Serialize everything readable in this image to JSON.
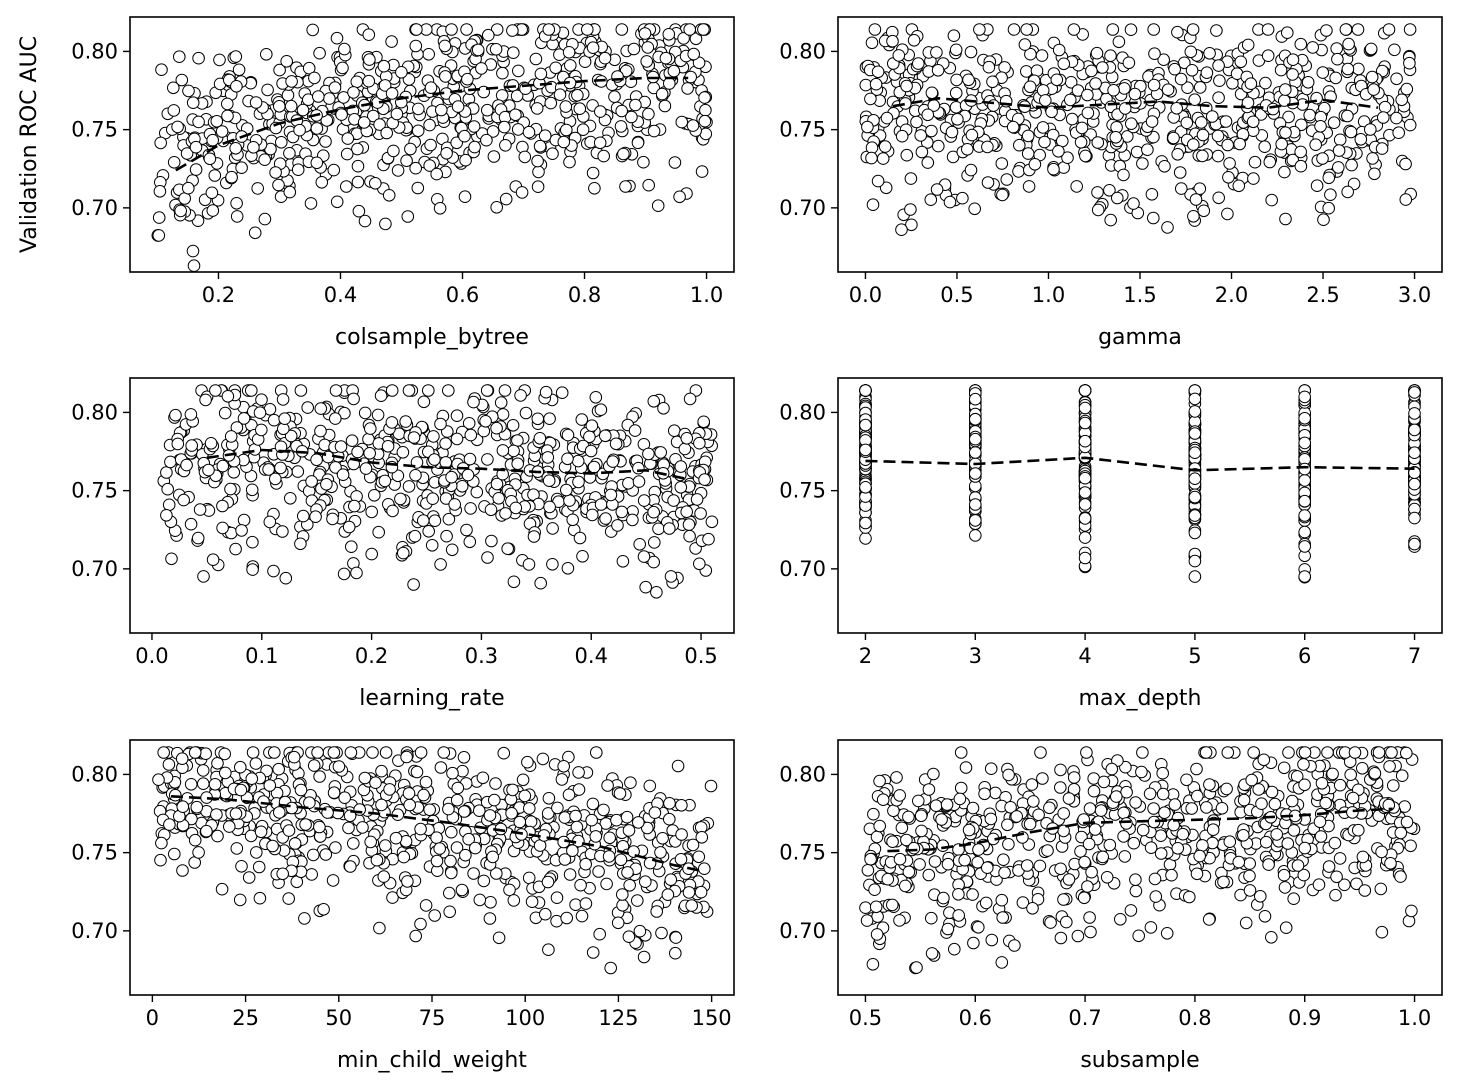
{
  "chart_data": [
    {
      "type": "scatter",
      "xlabel": "colsample_bytree",
      "ylabel": "Validation ROC AUC",
      "xlim": [
        0.055,
        1.045
      ],
      "ylim": [
        0.659,
        0.822
      ],
      "xticks": [
        0.2,
        0.4,
        0.6,
        0.8,
        1.0
      ],
      "xtick_labels": [
        "0.2",
        "0.4",
        "0.6",
        "0.8",
        "1.0"
      ],
      "yticks": [
        0.7,
        0.75,
        0.8
      ],
      "ytick_labels": [
        "0.70",
        "0.75",
        "0.80"
      ],
      "trend": {
        "x": [
          0.13,
          0.2,
          0.3,
          0.4,
          0.5,
          0.6,
          0.7,
          0.8,
          0.9,
          0.97
        ],
        "y": [
          0.724,
          0.74,
          0.754,
          0.763,
          0.77,
          0.775,
          0.778,
          0.781,
          0.783,
          0.783
        ]
      },
      "samples": {
        "x_range": [
          0.1,
          1.0
        ],
        "x_type": "uniform",
        "shape": "saturating",
        "spread": 0.045,
        "y_max": 0.814,
        "n": 700,
        "seed": 11
      }
    },
    {
      "type": "scatter",
      "xlabel": "gamma",
      "ylabel": "",
      "xlim": [
        -0.15,
        3.15
      ],
      "ylim": [
        0.659,
        0.822
      ],
      "xticks": [
        0.0,
        0.5,
        1.0,
        1.5,
        2.0,
        2.5,
        3.0
      ],
      "xtick_labels": [
        "0.0",
        "0.5",
        "1.0",
        "1.5",
        "2.0",
        "2.5",
        "3.0"
      ],
      "yticks": [
        0.7,
        0.75,
        0.8
      ],
      "ytick_labels": [
        "0.70",
        "0.75",
        "0.80"
      ],
      "trend": {
        "x": [
          0.15,
          0.4,
          0.7,
          1.0,
          1.3,
          1.6,
          1.9,
          2.2,
          2.5,
          2.8
        ],
        "y": [
          0.765,
          0.77,
          0.767,
          0.764,
          0.766,
          0.768,
          0.765,
          0.764,
          0.769,
          0.764
        ]
      },
      "samples": {
        "x_range": [
          0.0,
          2.98
        ],
        "x_type": "uniform",
        "shape": "flat",
        "spread": 0.045,
        "y_max": 0.814,
        "n": 700,
        "seed": 23
      }
    },
    {
      "type": "scatter",
      "xlabel": "learning_rate",
      "ylabel": "",
      "xlim": [
        -0.02,
        0.53
      ],
      "ylim": [
        0.659,
        0.822
      ],
      "xticks": [
        0.0,
        0.1,
        0.2,
        0.3,
        0.4,
        0.5
      ],
      "xtick_labels": [
        "0.0",
        "0.1",
        "0.2",
        "0.3",
        "0.4",
        "0.5"
      ],
      "yticks": [
        0.7,
        0.75,
        0.8
      ],
      "ytick_labels": [
        "0.70",
        "0.75",
        "0.80"
      ],
      "trend": {
        "x": [
          0.05,
          0.1,
          0.15,
          0.2,
          0.25,
          0.3,
          0.35,
          0.4,
          0.45,
          0.49
        ],
        "y": [
          0.771,
          0.776,
          0.774,
          0.768,
          0.765,
          0.764,
          0.762,
          0.761,
          0.763,
          0.757
        ]
      },
      "samples": {
        "x_range": [
          0.01,
          0.51
        ],
        "x_type": "uniform",
        "shape": "lr",
        "spread": 0.045,
        "y_max": 0.814,
        "n": 700,
        "seed": 37
      }
    },
    {
      "type": "scatter",
      "xlabel": "max_depth",
      "ylabel": "",
      "xlim": [
        1.75,
        7.25
      ],
      "ylim": [
        0.659,
        0.822
      ],
      "xticks": [
        2,
        3,
        4,
        5,
        6,
        7
      ],
      "xtick_labels": [
        "2",
        "3",
        "4",
        "5",
        "6",
        "7"
      ],
      "yticks": [
        0.7,
        0.75,
        0.8
      ],
      "ytick_labels": [
        "0.70",
        "0.75",
        "0.80"
      ],
      "trend": {
        "x": [
          2,
          3,
          4,
          5,
          6,
          7
        ],
        "y": [
          0.769,
          0.767,
          0.771,
          0.763,
          0.765,
          0.764
        ]
      },
      "samples": {
        "x_range": [
          2,
          7
        ],
        "x_type": "discrete",
        "shape": "depth",
        "spread": 0.04,
        "y_max": 0.814,
        "n": 600,
        "seed": 41
      }
    },
    {
      "type": "scatter",
      "xlabel": "min_child_weight",
      "ylabel": "",
      "xlim": [
        -6,
        156
      ],
      "ylim": [
        0.659,
        0.822
      ],
      "xticks": [
        0,
        25,
        50,
        75,
        100,
        125,
        150
      ],
      "xtick_labels": [
        "0",
        "25",
        "50",
        "75",
        "100",
        "125",
        "150"
      ],
      "yticks": [
        0.7,
        0.75,
        0.8
      ],
      "ytick_labels": [
        "0.70",
        "0.75",
        "0.80"
      ],
      "trend": {
        "x": [
          5,
          20,
          40,
          60,
          80,
          100,
          120,
          140,
          148
        ],
        "y": [
          0.786,
          0.784,
          0.779,
          0.775,
          0.769,
          0.762,
          0.754,
          0.742,
          0.738
        ]
      },
      "samples": {
        "x_range": [
          1,
          150
        ],
        "x_type": "uniform",
        "shape": "decreasing",
        "spread": 0.045,
        "y_max": 0.814,
        "n": 700,
        "seed": 53
      }
    },
    {
      "type": "scatter",
      "xlabel": "subsample",
      "ylabel": "",
      "xlim": [
        0.475,
        1.025
      ],
      "ylim": [
        0.659,
        0.822
      ],
      "xticks": [
        0.5,
        0.6,
        0.7,
        0.8,
        0.9,
        1.0
      ],
      "xtick_labels": [
        "0.5",
        "0.6",
        "0.7",
        "0.8",
        "0.9",
        "1.0"
      ],
      "yticks": [
        0.7,
        0.75,
        0.8
      ],
      "ytick_labels": [
        "0.70",
        "0.75",
        "0.80"
      ],
      "trend": {
        "x": [
          0.52,
          0.56,
          0.6,
          0.65,
          0.7,
          0.75,
          0.8,
          0.85,
          0.9,
          0.95,
          0.98
        ],
        "y": [
          0.751,
          0.752,
          0.756,
          0.763,
          0.769,
          0.77,
          0.771,
          0.772,
          0.774,
          0.777,
          0.778
        ]
      },
      "samples": {
        "x_range": [
          0.5,
          1.0
        ],
        "x_type": "uniform",
        "shape": "increasing",
        "spread": 0.045,
        "y_max": 0.814,
        "n": 700,
        "seed": 67
      }
    }
  ]
}
